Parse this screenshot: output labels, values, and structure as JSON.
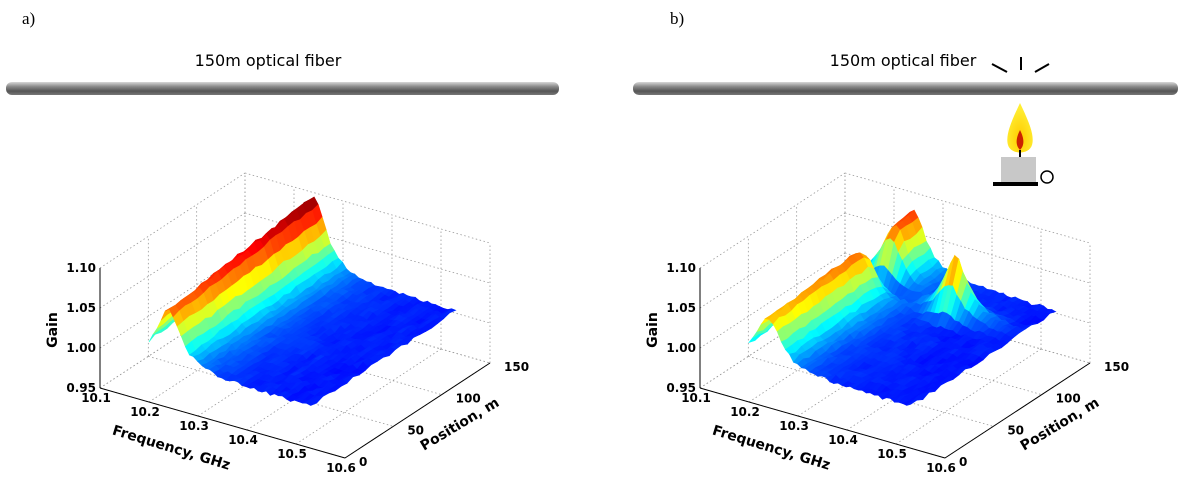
{
  "panels": [
    {
      "label": "a)",
      "fiber_label": "150m optical fiber",
      "gain_axis": {
        "title": "Gain",
        "ticks": [
          "0.95",
          "1.00",
          "1.05",
          "1.10"
        ]
      },
      "frequency_axis": {
        "title": "Frequency, GHz",
        "ticks": [
          "10.1",
          "10.2",
          "10.3",
          "10.4",
          "10.5",
          "10.6"
        ]
      },
      "position_axis": {
        "title": "Position, m",
        "ticks": [
          "0",
          "50",
          "100",
          "150"
        ]
      }
    },
    {
      "label": "b)",
      "fiber_label": "150m optical fiber",
      "gain_axis": {
        "title": "Gain",
        "ticks": [
          "0.95",
          "1.00",
          "1.05",
          "1.10"
        ]
      },
      "frequency_axis": {
        "title": "Frequency, GHz",
        "ticks": [
          "10.1",
          "10.2",
          "10.3",
          "10.4",
          "10.5",
          "10.6"
        ]
      },
      "position_axis": {
        "title": "Position, m",
        "ticks": [
          "0",
          "50",
          "100",
          "150"
        ]
      }
    }
  ]
}
